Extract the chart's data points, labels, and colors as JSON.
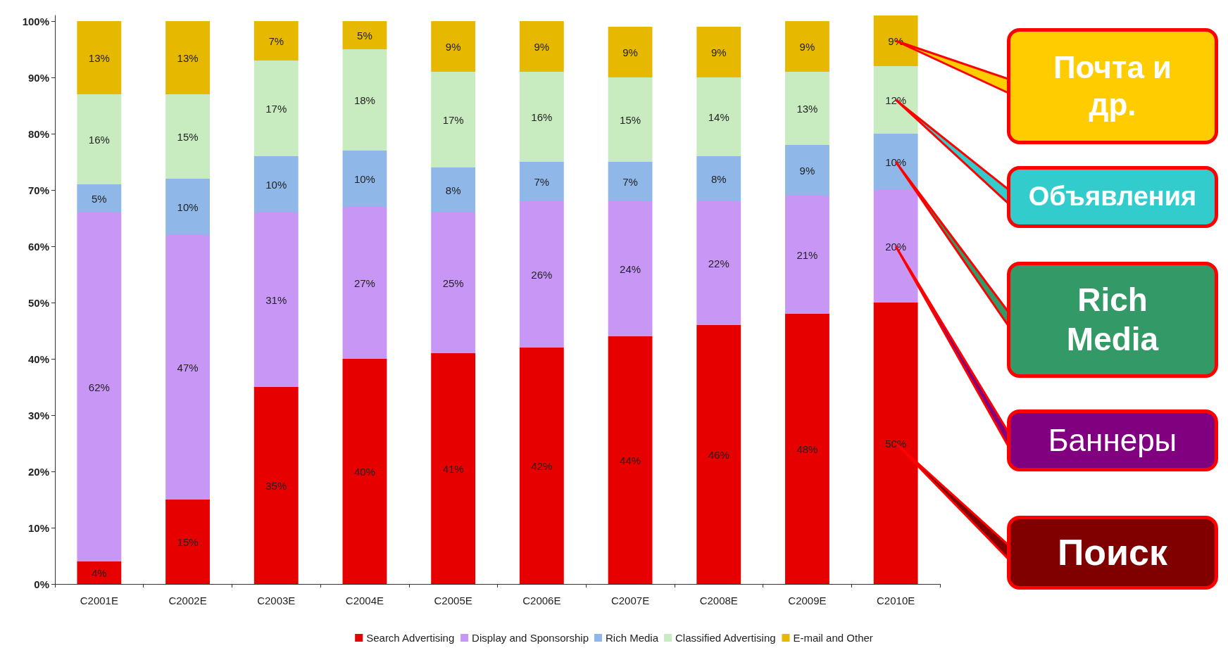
{
  "chart_data": {
    "type": "bar",
    "stacked": true,
    "categories": [
      "C2001E",
      "C2002E",
      "C2003E",
      "C2004E",
      "C2005E",
      "C2006E",
      "C2007E",
      "C2008E",
      "C2009E",
      "C2010E"
    ],
    "series": [
      {
        "name": "Search Advertising",
        "color": "#e60000",
        "values": [
          4,
          15,
          35,
          40,
          41,
          42,
          44,
          46,
          48,
          50
        ],
        "value_labels": [
          "4%",
          "15%",
          "35%",
          "40%",
          "41%",
          "42%",
          "44%",
          "46%",
          "48%",
          "50%"
        ]
      },
      {
        "name": "Display and Sponsorship",
        "color": "#c896f5",
        "values": [
          62,
          47,
          31,
          27,
          25,
          26,
          24,
          22,
          21,
          20
        ],
        "value_labels": [
          "62%",
          "47%",
          "31%",
          "27%",
          "25%",
          "26%",
          "24%",
          "22%",
          "21%",
          "20%"
        ]
      },
      {
        "name": "Rich Media",
        "color": "#8fb8e8",
        "values": [
          5,
          10,
          10,
          10,
          8,
          7,
          7,
          8,
          9,
          10
        ],
        "value_labels": [
          "5%",
          "10%",
          "10%",
          "10%",
          "8%",
          "7%",
          "7%",
          "8%",
          "9%",
          "10%"
        ]
      },
      {
        "name": "Classified Advertising",
        "color": "#c8ecc0",
        "values": [
          16,
          15,
          17,
          18,
          17,
          16,
          15,
          14,
          13,
          12
        ],
        "value_labels": [
          "16%",
          "15%",
          "17%",
          "18%",
          "17%",
          "16%",
          "15%",
          "14%",
          "13%",
          "12%"
        ]
      },
      {
        "name": "E-mail and Other",
        "color": "#e6b800",
        "values": [
          13,
          13,
          7,
          5,
          9,
          9,
          9,
          9,
          9,
          9
        ],
        "value_labels": [
          "13%",
          "13%",
          "7%",
          "5%",
          "9%",
          "9%",
          "9%",
          "9%",
          "9%",
          "9%"
        ]
      }
    ],
    "ylim": [
      0,
      101
    ],
    "yticks": [
      {
        "value": 0,
        "label": "0%"
      },
      {
        "value": 10,
        "label": "10%"
      },
      {
        "value": 20,
        "label": "20%"
      },
      {
        "value": 30,
        "label": "30%"
      },
      {
        "value": 40,
        "label": "40%"
      },
      {
        "value": 50,
        "label": "50%"
      },
      {
        "value": 60,
        "label": "60%"
      },
      {
        "value": 70,
        "label": "70%"
      },
      {
        "value": 80,
        "label": "80%"
      },
      {
        "value": 90,
        "label": "90%"
      },
      {
        "value": 100,
        "label": "100%"
      }
    ],
    "grid": false,
    "legend": "bottom",
    "annotations": [
      "Почта и др.",
      "Объявления",
      "Rich Media",
      "Баннеры",
      "Поиск"
    ]
  }
}
